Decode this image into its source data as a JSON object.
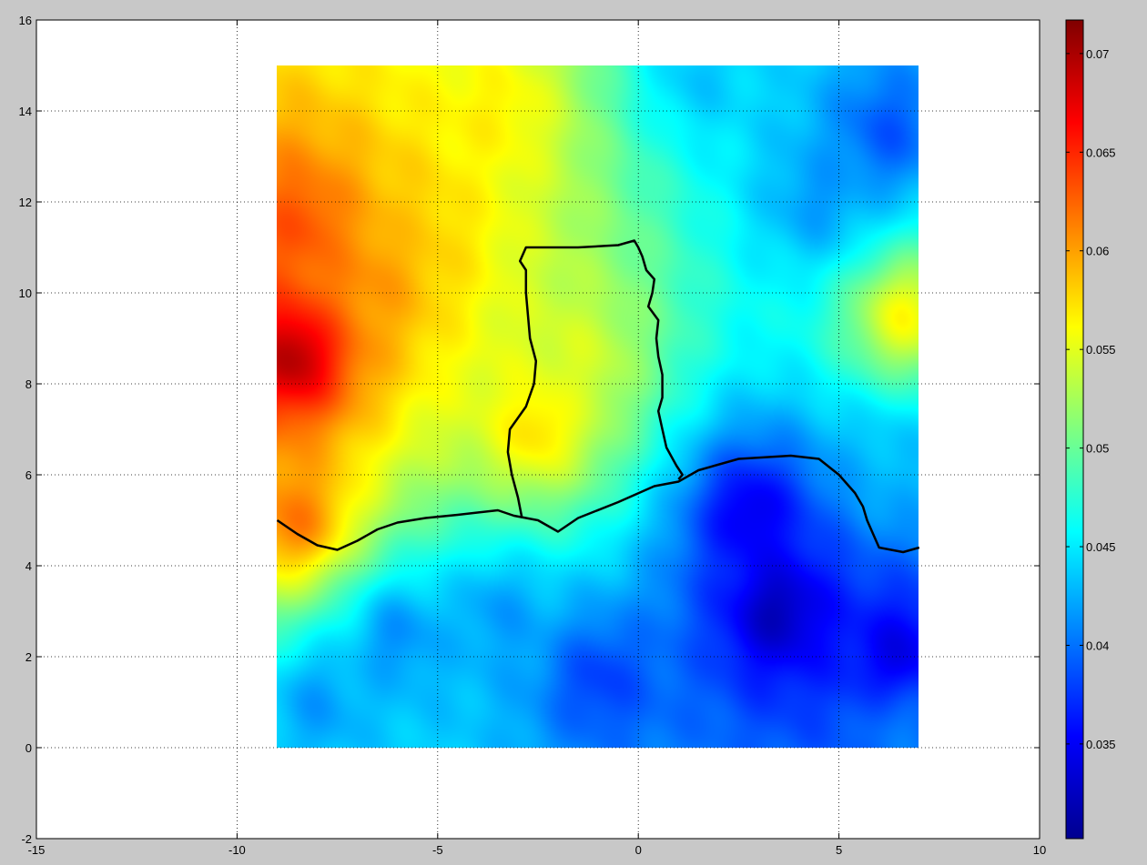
{
  "chart_data": {
    "type": "heatmap",
    "title": "",
    "xlabel": "",
    "ylabel": "",
    "xlim": [
      -15,
      10
    ],
    "ylim": [
      -2,
      16
    ],
    "grid": true,
    "colormap": "jet",
    "colorbar": {
      "position": "right",
      "clim": [
        0.0302,
        0.0717
      ],
      "ticks": [
        0.035,
        0.04,
        0.045,
        0.05,
        0.055,
        0.06,
        0.065,
        0.07
      ],
      "tick_labels": [
        "0.035",
        "0.04",
        "0.045",
        "0.05",
        "0.055",
        "0.06",
        "0.065",
        "0.07"
      ]
    },
    "x_ticks": [
      -15,
      -10,
      -5,
      0,
      5,
      10
    ],
    "x_tick_labels": [
      "-15",
      "-10",
      "-5",
      "0",
      "5",
      "10"
    ],
    "y_ticks": [
      -2,
      0,
      2,
      4,
      6,
      8,
      10,
      12,
      14,
      16
    ],
    "y_tick_labels": [
      "-2",
      "0",
      "2",
      "4",
      "6",
      "8",
      "10",
      "12",
      "14",
      "16"
    ],
    "field_extent": {
      "x": [
        -9,
        7
      ],
      "y": [
        0,
        15
      ]
    },
    "field_base_value": 0.05,
    "field_anomalies": [
      {
        "x": -8.6,
        "y": 8.6,
        "value": 0.072
      },
      {
        "x": -8.4,
        "y": 11.5,
        "value": 0.064
      },
      {
        "x": -6.5,
        "y": 10.5,
        "value": 0.061
      },
      {
        "x": -8.5,
        "y": 5.0,
        "value": 0.063
      },
      {
        "x": -5.5,
        "y": 11.3,
        "value": 0.058
      },
      {
        "x": -2.5,
        "y": 7.0,
        "value": 0.059
      },
      {
        "x": -3.5,
        "y": 14.0,
        "value": 0.057
      },
      {
        "x": -1.5,
        "y": 8.5,
        "value": 0.055
      },
      {
        "x": 1.5,
        "y": 14.8,
        "value": 0.043
      },
      {
        "x": 4.5,
        "y": 12.0,
        "value": 0.041
      },
      {
        "x": 6.2,
        "y": 13.5,
        "value": 0.038
      },
      {
        "x": 6.6,
        "y": 9.5,
        "value": 0.058
      },
      {
        "x": 3.5,
        "y": 3.0,
        "value": 0.031
      },
      {
        "x": 2.8,
        "y": 5.2,
        "value": 0.033
      },
      {
        "x": 6.5,
        "y": 2.0,
        "value": 0.033
      },
      {
        "x": 6.6,
        "y": 0.5,
        "value": 0.041
      },
      {
        "x": -3.5,
        "y": 3.0,
        "value": 0.041
      },
      {
        "x": -6.0,
        "y": 2.5,
        "value": 0.04
      },
      {
        "x": -1.0,
        "y": 1.5,
        "value": 0.037
      },
      {
        "x": -8.0,
        "y": 1.0,
        "value": 0.041
      },
      {
        "x": 6.3,
        "y": 6.2,
        "value": 0.043
      }
    ],
    "coastline": [
      [
        -9.0,
        5.0
      ],
      [
        -8.5,
        4.7
      ],
      [
        -8.0,
        4.45
      ],
      [
        -7.5,
        4.35
      ],
      [
        -7.0,
        4.55
      ],
      [
        -6.5,
        4.8
      ],
      [
        -6.0,
        4.95
      ],
      [
        -5.3,
        5.05
      ],
      [
        -4.5,
        5.12
      ],
      [
        -3.5,
        5.22
      ],
      [
        -3.1,
        5.1
      ],
      [
        -2.5,
        5.0
      ],
      [
        -2.0,
        4.75
      ],
      [
        -1.5,
        5.05
      ],
      [
        -0.5,
        5.4
      ],
      [
        0.4,
        5.75
      ],
      [
        1.0,
        5.85
      ],
      [
        1.5,
        6.1
      ],
      [
        2.5,
        6.35
      ],
      [
        3.8,
        6.42
      ],
      [
        4.5,
        6.35
      ],
      [
        5.0,
        6.0
      ],
      [
        5.4,
        5.6
      ],
      [
        5.6,
        5.3
      ],
      [
        5.7,
        5.0
      ],
      [
        6.0,
        4.4
      ],
      [
        6.6,
        4.3
      ],
      [
        7.0,
        4.4
      ]
    ],
    "border_outline": [
      [
        -2.9,
        5.05
      ],
      [
        -3.0,
        5.5
      ],
      [
        -3.15,
        6.0
      ],
      [
        -3.25,
        6.5
      ],
      [
        -3.2,
        7.0
      ],
      [
        -2.8,
        7.5
      ],
      [
        -2.6,
        8.0
      ],
      [
        -2.55,
        8.5
      ],
      [
        -2.7,
        9.0
      ],
      [
        -2.75,
        9.5
      ],
      [
        -2.8,
        10.0
      ],
      [
        -2.8,
        10.5
      ],
      [
        -2.95,
        10.7
      ],
      [
        -2.8,
        11.0
      ],
      [
        -1.5,
        11.0
      ],
      [
        -0.5,
        11.05
      ],
      [
        -0.1,
        11.15
      ],
      [
        0.0,
        11.0
      ],
      [
        0.1,
        10.8
      ],
      [
        0.2,
        10.5
      ],
      [
        0.4,
        10.3
      ],
      [
        0.35,
        10.0
      ],
      [
        0.25,
        9.7
      ],
      [
        0.5,
        9.4
      ],
      [
        0.45,
        9.0
      ],
      [
        0.5,
        8.6
      ],
      [
        0.6,
        8.2
      ],
      [
        0.6,
        7.7
      ],
      [
        0.5,
        7.4
      ],
      [
        0.6,
        7.0
      ],
      [
        0.7,
        6.6
      ],
      [
        0.95,
        6.2
      ],
      [
        1.1,
        6.0
      ],
      [
        1.0,
        5.9
      ]
    ]
  }
}
